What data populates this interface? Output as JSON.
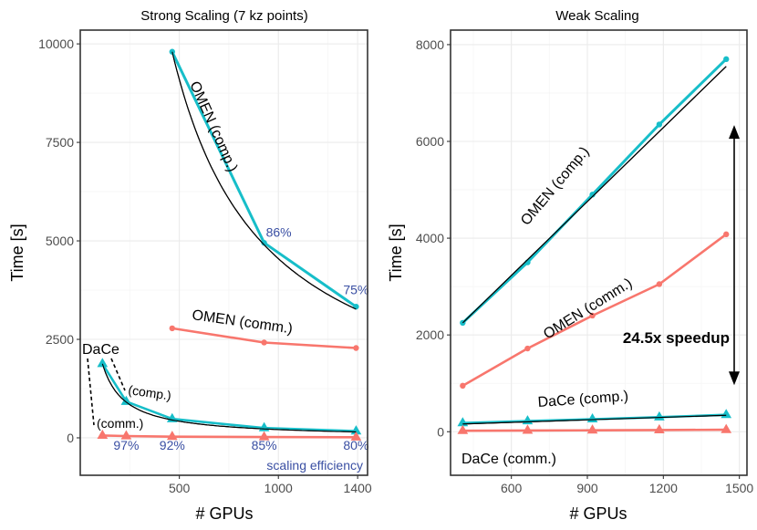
{
  "chart_data": [
    {
      "type": "line",
      "title": "Strong Scaling (7 kz points)",
      "xlabel": "# GPUs",
      "ylabel": "Time [s]",
      "xlim": [
        0,
        1450
      ],
      "ylim": [
        -950,
        10350
      ],
      "xticks": [
        500,
        1000,
        1400
      ],
      "xtick_labels": [
        "500",
        "1000",
        "1400"
      ],
      "yticks": [
        0,
        2500,
        5000,
        7500,
        10000
      ],
      "ytick_labels": [
        "0",
        "2500",
        "5000",
        "7500",
        "10000"
      ],
      "series": [
        {
          "name": "OMEN (comp.)",
          "color": "#17bec9",
          "marker": "circle",
          "x": [
            464,
            928,
            1392
          ],
          "y": [
            9800,
            4950,
            3330
          ]
        },
        {
          "name": "OMEN (comm.)",
          "color": "#f8766d",
          "marker": "circle",
          "x": [
            464,
            928,
            1392
          ],
          "y": [
            2780,
            2420,
            2280
          ]
        },
        {
          "name": "DaCe (comp.)",
          "color": "#17bec9",
          "marker": "triangle",
          "x": [
            112,
            232,
            464,
            928,
            1392
          ],
          "y": [
            1880,
            920,
            480,
            250,
            170
          ]
        },
        {
          "name": "DaCe (comm.)",
          "color": "#f8766d",
          "marker": "triangle",
          "x": [
            112,
            232,
            464,
            928,
            1392
          ],
          "y": [
            60,
            45,
            30,
            20,
            15
          ]
        }
      ],
      "ideal_fits": [
        {
          "name": "OMEN ideal",
          "color": "#000000",
          "x0": 464,
          "y0": 9800
        },
        {
          "name": "DaCe ideal",
          "color": "#000000",
          "x0": 112,
          "y0": 1880
        }
      ],
      "annotations": {
        "omen_comp": "OMEN (comp.)",
        "omen_comm": "OMEN (comm.)",
        "dace": "DaCe",
        "dace_comp": "(comp.)",
        "dace_comm": "(comm.)",
        "eff_omen": [
          {
            "label": "86%",
            "x": 928,
            "y": 5100
          },
          {
            "label": "75%",
            "x": 1392,
            "y": 3650
          }
        ],
        "eff_dace": [
          {
            "label": "97%",
            "x": 232,
            "y": -300
          },
          {
            "label": "92%",
            "x": 464,
            "y": -300
          },
          {
            "label": "85%",
            "x": 928,
            "y": -300
          },
          {
            "label": "80%",
            "x": 1392,
            "y": -300
          }
        ],
        "scaling_efficiency": "scaling efficiency"
      }
    },
    {
      "type": "line",
      "title": "Weak Scaling",
      "xlabel": "# GPUs",
      "ylabel": "Time [s]",
      "xlim": [
        360,
        1530
      ],
      "ylim": [
        -900,
        8300
      ],
      "xticks": [
        600,
        900,
        1200,
        1500
      ],
      "xtick_labels": [
        "600",
        "900",
        "1200",
        "1500"
      ],
      "yticks": [
        0,
        2000,
        4000,
        6000,
        8000
      ],
      "ytick_labels": [
        "0",
        "2000",
        "4000",
        "6000",
        "8000"
      ],
      "series": [
        {
          "name": "OMEN (comp.)",
          "color": "#17bec9",
          "marker": "circle",
          "x": [
            408,
            664,
            920,
            1184,
            1448
          ],
          "y": [
            2250,
            3500,
            4900,
            6350,
            7700
          ]
        },
        {
          "name": "OMEN (comm.)",
          "color": "#f8766d",
          "marker": "circle",
          "x": [
            408,
            664,
            920,
            1184,
            1448
          ],
          "y": [
            950,
            1720,
            2400,
            3050,
            4080
          ]
        },
        {
          "name": "DaCe (comp.)",
          "color": "#17bec9",
          "marker": "triangle",
          "x": [
            408,
            664,
            920,
            1184,
            1448
          ],
          "y": [
            180,
            220,
            260,
            300,
            350
          ]
        },
        {
          "name": "DaCe (comm.)",
          "color": "#f8766d",
          "marker": "triangle",
          "x": [
            408,
            664,
            920,
            1184,
            1448
          ],
          "y": [
            20,
            25,
            30,
            35,
            40
          ]
        }
      ],
      "fit_lines": [
        {
          "color": "#000000",
          "x": [
            408,
            1448
          ],
          "y": [
            2250,
            7550
          ]
        },
        {
          "color": "#000000",
          "x": [
            408,
            1448
          ],
          "y": [
            160,
            340
          ]
        }
      ],
      "annotations": {
        "omen_comp": "OMEN (comp.)",
        "omen_comm": "OMEN (comm.)",
        "dace_comp": "DaCe (comp.)",
        "dace_comm": "DaCe (comm.)",
        "speedup": "24.5x speedup",
        "arrow_from": 6300,
        "arrow_to": 1000
      }
    }
  ]
}
